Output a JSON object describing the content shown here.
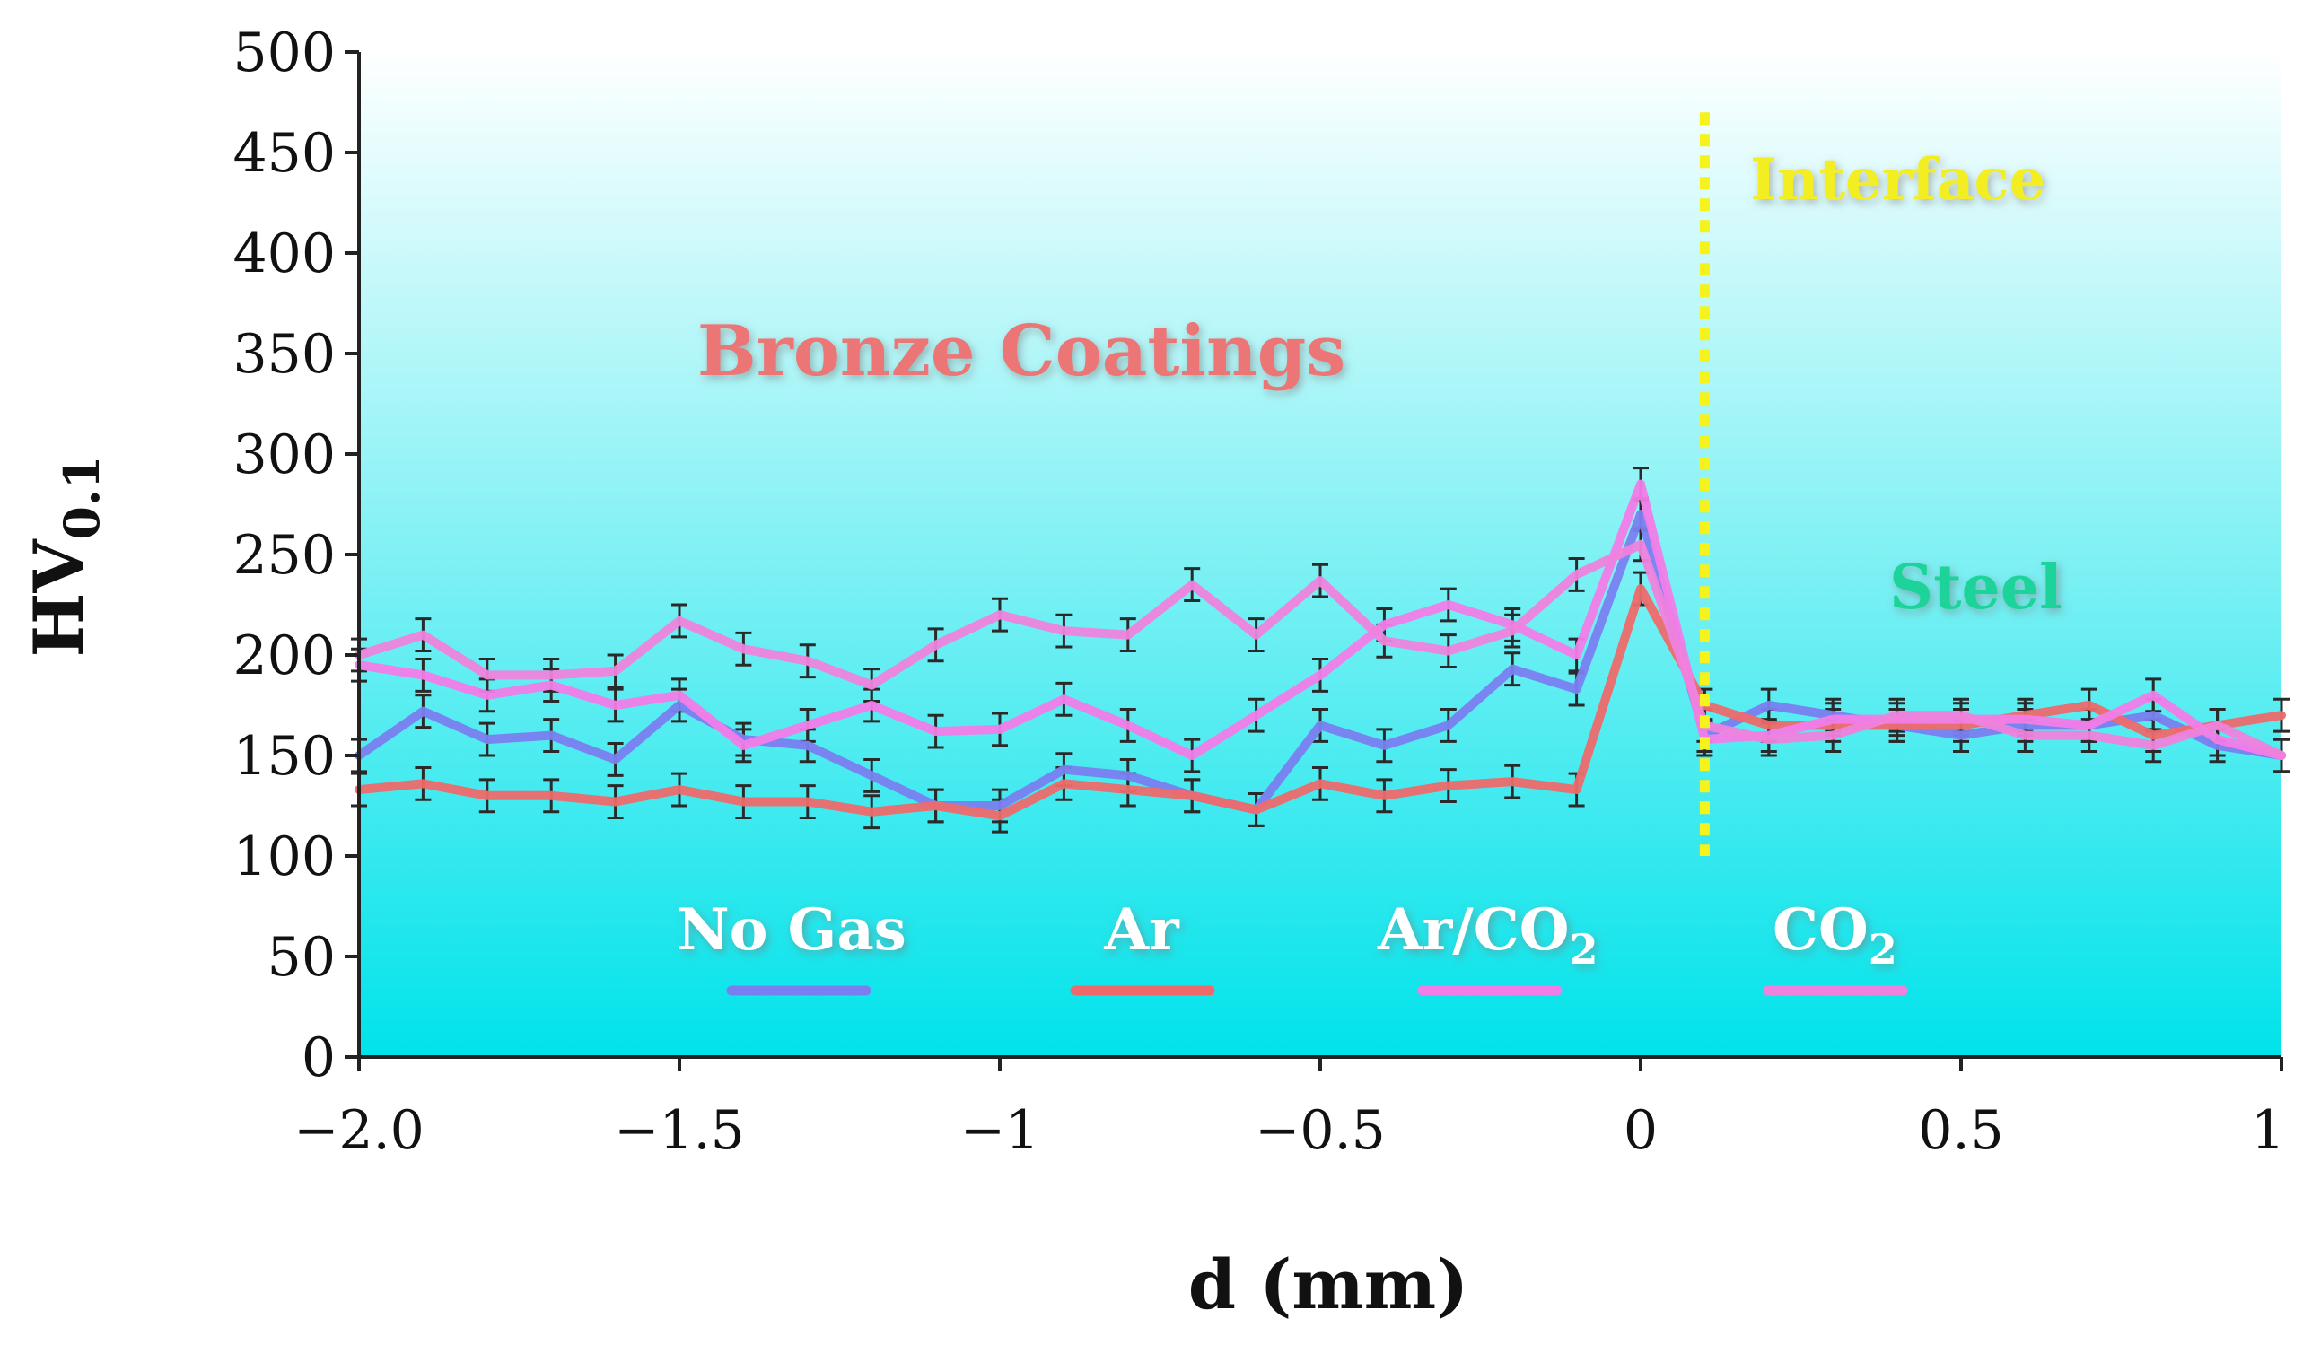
{
  "chart_data": {
    "type": "line",
    "xlabel": "d (mm)",
    "ylabel": {
      "main": "HV",
      "sub": "0.1"
    },
    "xlim": [
      -2.0,
      1.0
    ],
    "ylim": [
      0,
      500
    ],
    "x_ticks": [
      -2.0,
      -1.5,
      -1,
      -0.5,
      0,
      0.5,
      1
    ],
    "x_tick_labels": [
      "−2.0",
      "−1.5",
      "−1",
      "−0.5",
      "0",
      "0.5",
      "1"
    ],
    "y_ticks": [
      0,
      50,
      100,
      150,
      200,
      250,
      300,
      350,
      400,
      450,
      500
    ],
    "y_tick_labels": [
      "0",
      "50",
      "100",
      "150",
      "200",
      "250",
      "300",
      "350",
      "400",
      "450",
      "500"
    ],
    "x": [
      -2.0,
      -1.9,
      -1.8,
      -1.7,
      -1.6,
      -1.5,
      -1.4,
      -1.3,
      -1.2,
      -1.1,
      -1.0,
      -0.9,
      -0.8,
      -0.7,
      -0.6,
      -0.5,
      -0.4,
      -0.3,
      -0.2,
      -0.1,
      0.0,
      0.1,
      0.2,
      0.3,
      0.4,
      0.5,
      0.6,
      0.7,
      0.8,
      0.9,
      1.0
    ],
    "error_bar": 8,
    "series": [
      {
        "name": "No Gas",
        "color": "#7a7ff0",
        "values": [
          150,
          172,
          158,
          160,
          148,
          175,
          158,
          155,
          140,
          125,
          125,
          143,
          140,
          130,
          123,
          165,
          155,
          165,
          193,
          183,
          270,
          160,
          175,
          170,
          165,
          160,
          165,
          165,
          170,
          155,
          150
        ]
      },
      {
        "name": "Ar",
        "color": "#ee6a6a",
        "values": [
          133,
          136,
          130,
          130,
          127,
          133,
          127,
          127,
          122,
          125,
          120,
          136,
          133,
          130,
          123,
          136,
          130,
          135,
          137,
          133,
          233,
          175,
          165,
          165,
          165,
          165,
          170,
          175,
          160,
          165,
          170
        ]
      },
      {
        "name": "Ar/CO2",
        "color": "#f27ce8",
        "values": [
          195,
          190,
          180,
          185,
          175,
          180,
          155,
          165,
          175,
          162,
          163,
          178,
          165,
          150,
          170,
          190,
          215,
          225,
          215,
          200,
          285,
          158,
          160,
          168,
          168,
          168,
          168,
          165,
          180,
          158,
          150
        ]
      },
      {
        "name": "CO2",
        "color": "#ef82dc",
        "values": [
          200,
          210,
          190,
          190,
          192,
          217,
          203,
          197,
          185,
          205,
          220,
          212,
          210,
          235,
          210,
          237,
          207,
          202,
          212,
          240,
          255,
          165,
          158,
          160,
          170,
          170,
          160,
          160,
          155,
          165,
          150
        ]
      }
    ],
    "legend": [
      {
        "label": "No Gas",
        "color": "#7a7ff0"
      },
      {
        "label": "Ar",
        "color": "#ee6a6a"
      },
      {
        "label": "Ar/CO",
        "sub": "2",
        "color": "#f27ce8"
      },
      {
        "label": "CO",
        "sub": "2",
        "color": "#ef82dc"
      }
    ],
    "annotations": [
      {
        "text": "Bronze Coatings",
        "color": "#ec7474"
      },
      {
        "text": "Interface",
        "color": "#f2ee24"
      },
      {
        "text": "Steel",
        "color": "#1ed49a"
      }
    ],
    "interface_line": {
      "x": 0.1,
      "y_from": 100,
      "y_to": 470,
      "color": "#f5f21c"
    },
    "background": {
      "top": "#ffffff",
      "bottom": "#00e3ea"
    }
  }
}
